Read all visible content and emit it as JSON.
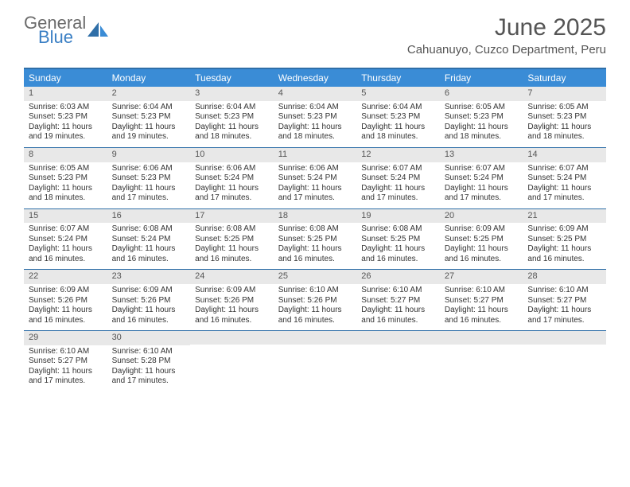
{
  "logo": {
    "general": "General",
    "blue": "Blue"
  },
  "title": "June 2025",
  "location": "Cahuanuyo, Cuzco Department, Peru",
  "colors": {
    "header_bg": "#3a8cd6",
    "header_text": "#ffffff",
    "border": "#2f6fa8",
    "daynum_bg": "#e8e8e8",
    "text": "#333333",
    "logo_gray": "#6b6b6b",
    "logo_blue": "#3a7fc4"
  },
  "weekdays": [
    "Sunday",
    "Monday",
    "Tuesday",
    "Wednesday",
    "Thursday",
    "Friday",
    "Saturday"
  ],
  "weeks": [
    [
      {
        "n": "1",
        "sunrise": "Sunrise: 6:03 AM",
        "sunset": "Sunset: 5:23 PM",
        "day1": "Daylight: 11 hours",
        "day2": "and 19 minutes."
      },
      {
        "n": "2",
        "sunrise": "Sunrise: 6:04 AM",
        "sunset": "Sunset: 5:23 PM",
        "day1": "Daylight: 11 hours",
        "day2": "and 19 minutes."
      },
      {
        "n": "3",
        "sunrise": "Sunrise: 6:04 AM",
        "sunset": "Sunset: 5:23 PM",
        "day1": "Daylight: 11 hours",
        "day2": "and 18 minutes."
      },
      {
        "n": "4",
        "sunrise": "Sunrise: 6:04 AM",
        "sunset": "Sunset: 5:23 PM",
        "day1": "Daylight: 11 hours",
        "day2": "and 18 minutes."
      },
      {
        "n": "5",
        "sunrise": "Sunrise: 6:04 AM",
        "sunset": "Sunset: 5:23 PM",
        "day1": "Daylight: 11 hours",
        "day2": "and 18 minutes."
      },
      {
        "n": "6",
        "sunrise": "Sunrise: 6:05 AM",
        "sunset": "Sunset: 5:23 PM",
        "day1": "Daylight: 11 hours",
        "day2": "and 18 minutes."
      },
      {
        "n": "7",
        "sunrise": "Sunrise: 6:05 AM",
        "sunset": "Sunset: 5:23 PM",
        "day1": "Daylight: 11 hours",
        "day2": "and 18 minutes."
      }
    ],
    [
      {
        "n": "8",
        "sunrise": "Sunrise: 6:05 AM",
        "sunset": "Sunset: 5:23 PM",
        "day1": "Daylight: 11 hours",
        "day2": "and 18 minutes."
      },
      {
        "n": "9",
        "sunrise": "Sunrise: 6:06 AM",
        "sunset": "Sunset: 5:23 PM",
        "day1": "Daylight: 11 hours",
        "day2": "and 17 minutes."
      },
      {
        "n": "10",
        "sunrise": "Sunrise: 6:06 AM",
        "sunset": "Sunset: 5:24 PM",
        "day1": "Daylight: 11 hours",
        "day2": "and 17 minutes."
      },
      {
        "n": "11",
        "sunrise": "Sunrise: 6:06 AM",
        "sunset": "Sunset: 5:24 PM",
        "day1": "Daylight: 11 hours",
        "day2": "and 17 minutes."
      },
      {
        "n": "12",
        "sunrise": "Sunrise: 6:07 AM",
        "sunset": "Sunset: 5:24 PM",
        "day1": "Daylight: 11 hours",
        "day2": "and 17 minutes."
      },
      {
        "n": "13",
        "sunrise": "Sunrise: 6:07 AM",
        "sunset": "Sunset: 5:24 PM",
        "day1": "Daylight: 11 hours",
        "day2": "and 17 minutes."
      },
      {
        "n": "14",
        "sunrise": "Sunrise: 6:07 AM",
        "sunset": "Sunset: 5:24 PM",
        "day1": "Daylight: 11 hours",
        "day2": "and 17 minutes."
      }
    ],
    [
      {
        "n": "15",
        "sunrise": "Sunrise: 6:07 AM",
        "sunset": "Sunset: 5:24 PM",
        "day1": "Daylight: 11 hours",
        "day2": "and 16 minutes."
      },
      {
        "n": "16",
        "sunrise": "Sunrise: 6:08 AM",
        "sunset": "Sunset: 5:24 PM",
        "day1": "Daylight: 11 hours",
        "day2": "and 16 minutes."
      },
      {
        "n": "17",
        "sunrise": "Sunrise: 6:08 AM",
        "sunset": "Sunset: 5:25 PM",
        "day1": "Daylight: 11 hours",
        "day2": "and 16 minutes."
      },
      {
        "n": "18",
        "sunrise": "Sunrise: 6:08 AM",
        "sunset": "Sunset: 5:25 PM",
        "day1": "Daylight: 11 hours",
        "day2": "and 16 minutes."
      },
      {
        "n": "19",
        "sunrise": "Sunrise: 6:08 AM",
        "sunset": "Sunset: 5:25 PM",
        "day1": "Daylight: 11 hours",
        "day2": "and 16 minutes."
      },
      {
        "n": "20",
        "sunrise": "Sunrise: 6:09 AM",
        "sunset": "Sunset: 5:25 PM",
        "day1": "Daylight: 11 hours",
        "day2": "and 16 minutes."
      },
      {
        "n": "21",
        "sunrise": "Sunrise: 6:09 AM",
        "sunset": "Sunset: 5:25 PM",
        "day1": "Daylight: 11 hours",
        "day2": "and 16 minutes."
      }
    ],
    [
      {
        "n": "22",
        "sunrise": "Sunrise: 6:09 AM",
        "sunset": "Sunset: 5:26 PM",
        "day1": "Daylight: 11 hours",
        "day2": "and 16 minutes."
      },
      {
        "n": "23",
        "sunrise": "Sunrise: 6:09 AM",
        "sunset": "Sunset: 5:26 PM",
        "day1": "Daylight: 11 hours",
        "day2": "and 16 minutes."
      },
      {
        "n": "24",
        "sunrise": "Sunrise: 6:09 AM",
        "sunset": "Sunset: 5:26 PM",
        "day1": "Daylight: 11 hours",
        "day2": "and 16 minutes."
      },
      {
        "n": "25",
        "sunrise": "Sunrise: 6:10 AM",
        "sunset": "Sunset: 5:26 PM",
        "day1": "Daylight: 11 hours",
        "day2": "and 16 minutes."
      },
      {
        "n": "26",
        "sunrise": "Sunrise: 6:10 AM",
        "sunset": "Sunset: 5:27 PM",
        "day1": "Daylight: 11 hours",
        "day2": "and 16 minutes."
      },
      {
        "n": "27",
        "sunrise": "Sunrise: 6:10 AM",
        "sunset": "Sunset: 5:27 PM",
        "day1": "Daylight: 11 hours",
        "day2": "and 16 minutes."
      },
      {
        "n": "28",
        "sunrise": "Sunrise: 6:10 AM",
        "sunset": "Sunset: 5:27 PM",
        "day1": "Daylight: 11 hours",
        "day2": "and 17 minutes."
      }
    ],
    [
      {
        "n": "29",
        "sunrise": "Sunrise: 6:10 AM",
        "sunset": "Sunset: 5:27 PM",
        "day1": "Daylight: 11 hours",
        "day2": "and 17 minutes."
      },
      {
        "n": "30",
        "sunrise": "Sunrise: 6:10 AM",
        "sunset": "Sunset: 5:28 PM",
        "day1": "Daylight: 11 hours",
        "day2": "and 17 minutes."
      },
      {
        "empty": true
      },
      {
        "empty": true
      },
      {
        "empty": true
      },
      {
        "empty": true
      },
      {
        "empty": true
      }
    ]
  ]
}
